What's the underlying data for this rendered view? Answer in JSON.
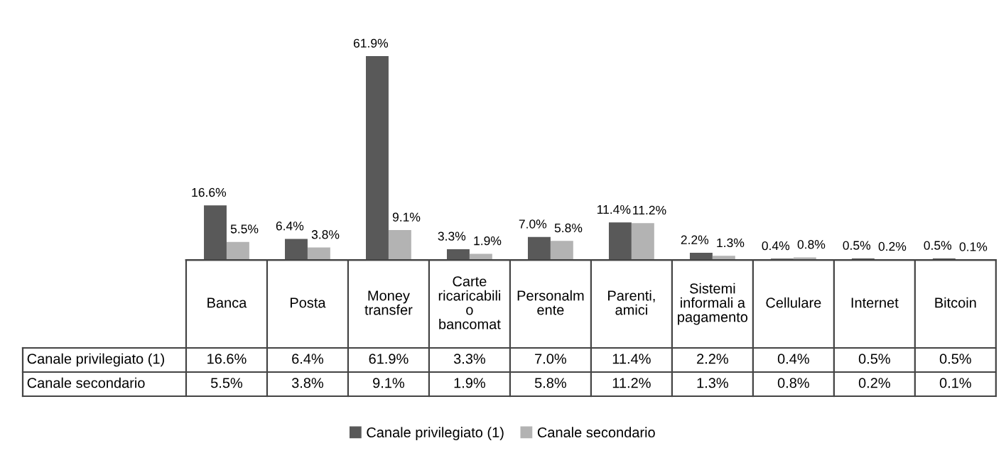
{
  "chart_data": {
    "type": "bar",
    "categories": [
      "Banca",
      "Posta",
      "Money\ntransfer",
      "Carte\nricaricabili\no\nbancomat",
      "Personalm\nente",
      "Parenti,\namici",
      "Sistemi\ninformali a\npagamento",
      "Cellulare",
      "Internet",
      "Bitcoin"
    ],
    "series": [
      {
        "name": "Canale privilegiato (1)",
        "color": "#595959",
        "values": [
          16.6,
          6.4,
          61.9,
          3.3,
          7.0,
          11.4,
          2.2,
          0.4,
          0.5,
          0.5
        ],
        "value_labels": [
          "16.6%",
          "6.4%",
          "61.9%",
          "3.3%",
          "7.0%",
          "11.4%",
          "2.2%",
          "0.4%",
          "0.5%",
          "0.5%"
        ]
      },
      {
        "name": "Canale secondario",
        "color": "#b3b3b3",
        "values": [
          5.5,
          3.8,
          9.1,
          1.9,
          5.8,
          11.2,
          1.3,
          0.8,
          0.2,
          0.1
        ],
        "value_labels": [
          "5.5%",
          "3.8%",
          "9.1%",
          "1.9%",
          "5.8%",
          "11.2%",
          "1.3%",
          "0.8%",
          "0.2%",
          "0.1%"
        ]
      }
    ],
    "legend": "bottom"
  }
}
